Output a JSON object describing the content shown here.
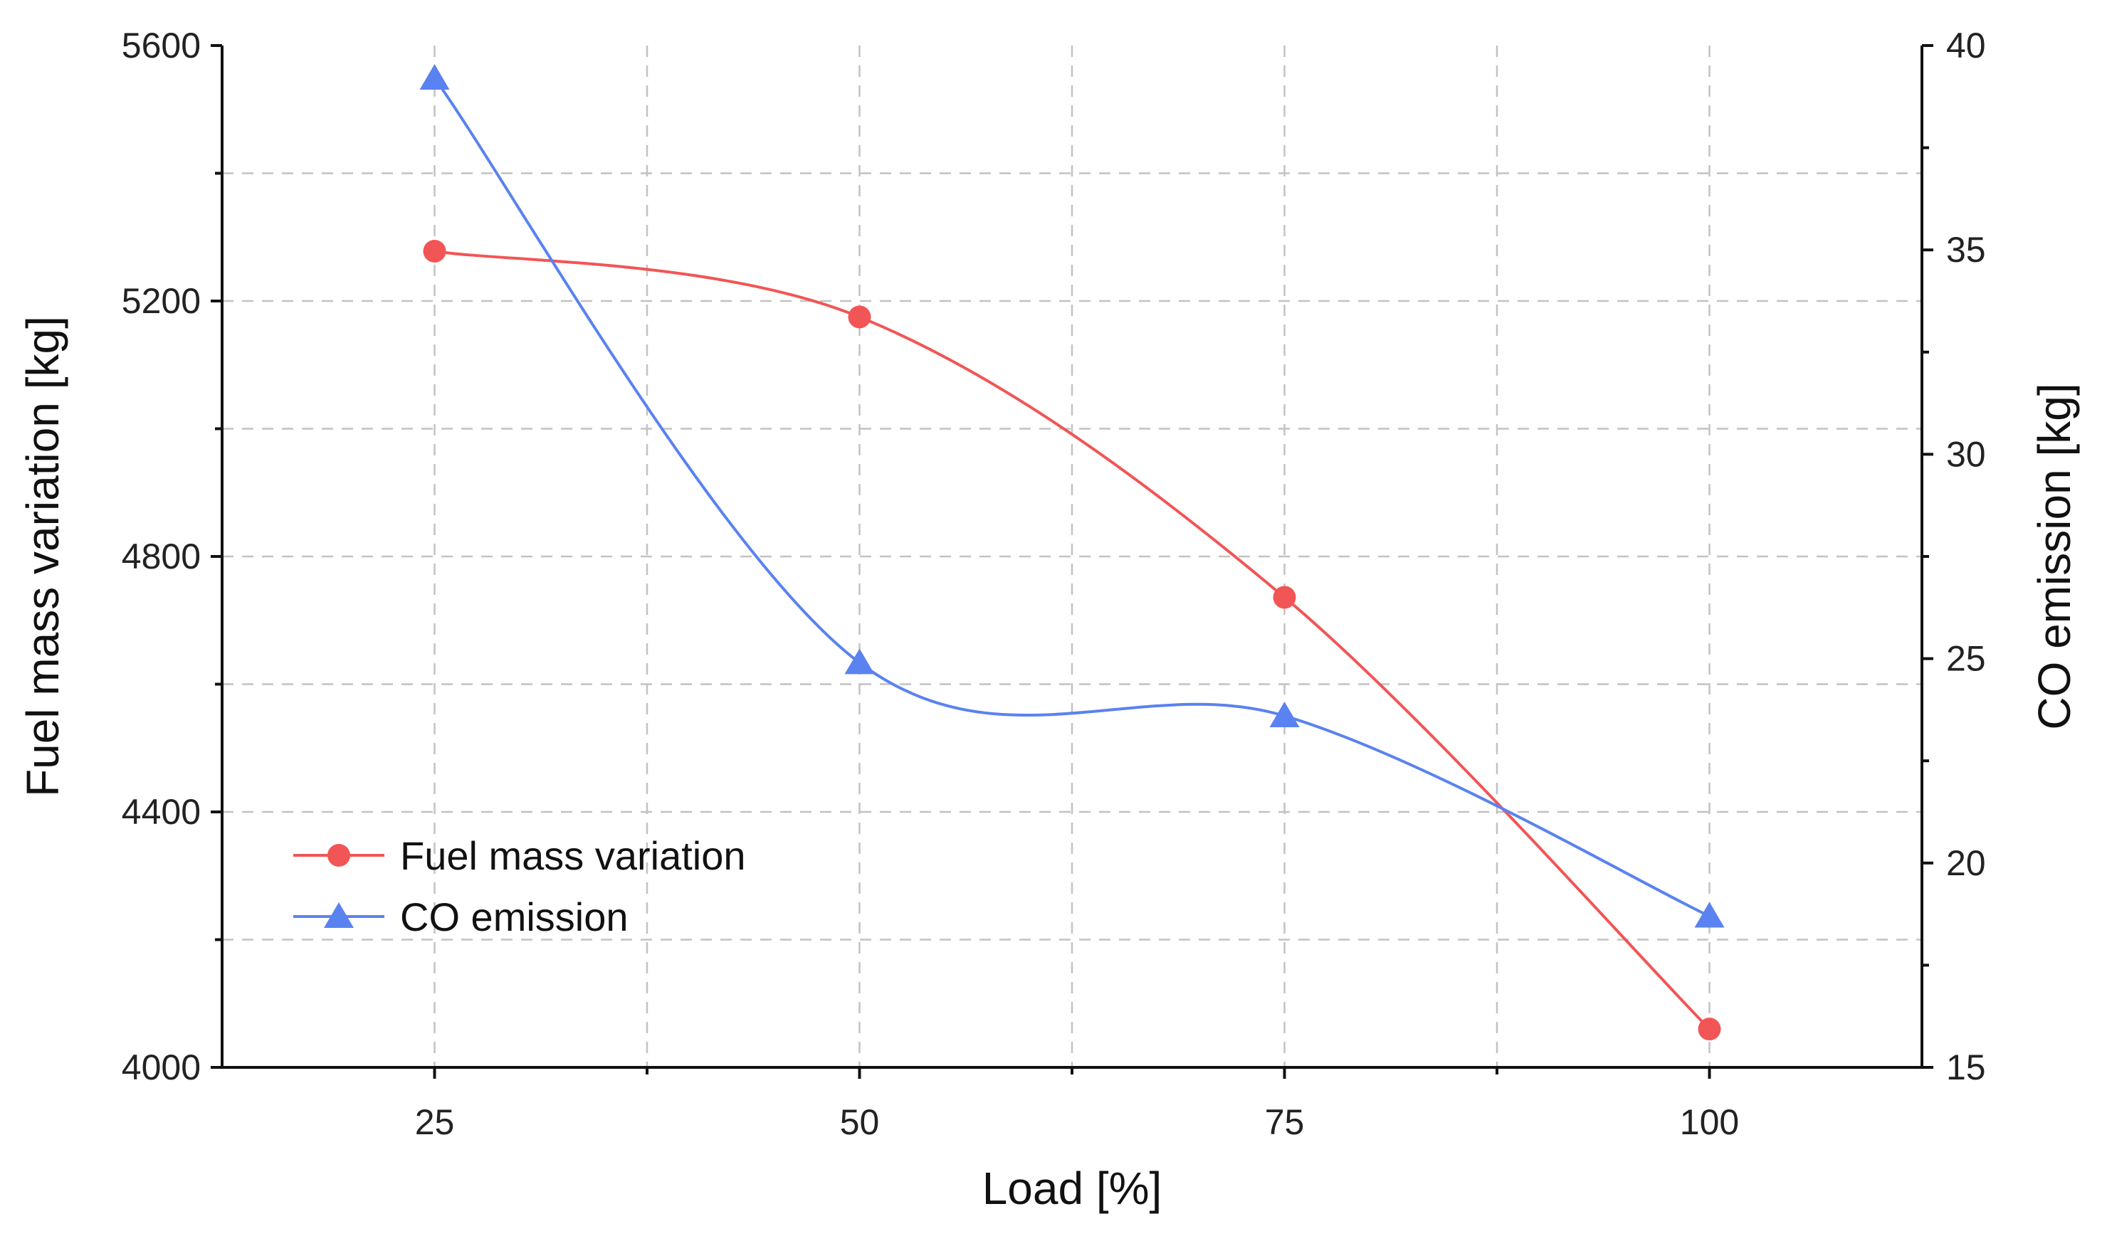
{
  "chart_data": {
    "type": "line",
    "xlabel": "Load [%]",
    "ylabel_left": "Fuel mass variation [kg]",
    "ylabel_right": "CO emission [kg]",
    "x_categories": [
      25,
      50,
      75,
      100
    ],
    "x_tick_labels": [
      "25",
      "50",
      "75",
      "100"
    ],
    "xlim": [
      12.5,
      112.5
    ],
    "ylim_left": [
      4000,
      5600
    ],
    "yticks_left": [
      4000,
      4400,
      4800,
      5200,
      5600
    ],
    "ytick_labels_left": [
      "4000",
      "4400",
      "4800",
      "5200",
      "5600"
    ],
    "ylim_right": [
      15,
      40
    ],
    "yticks_right": [
      15,
      20,
      25,
      30,
      35,
      40
    ],
    "ytick_labels_right": [
      "15",
      "20",
      "25",
      "30",
      "35",
      "40"
    ],
    "grid": true,
    "legend_position": "bottom-left",
    "series": [
      {
        "name": "Fuel mass variation",
        "axis": "left",
        "marker": "circle",
        "color": "#f25555",
        "x": [
          25,
          50,
          75,
          100
        ],
        "values": [
          5278,
          5175,
          4736,
          4060
        ]
      },
      {
        "name": "CO emission",
        "axis": "right",
        "marker": "triangle",
        "color": "#5a82f0",
        "x": [
          25,
          50,
          75,
          100
        ],
        "values": [
          39.2,
          24.9,
          23.6,
          18.7
        ]
      }
    ]
  }
}
